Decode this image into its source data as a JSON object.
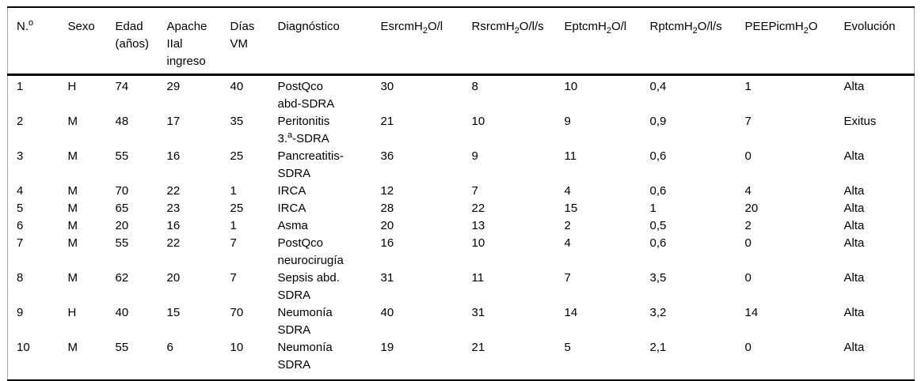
{
  "table": {
    "headers": [
      "N.^o^",
      "Sexo",
      "Edad\n(años)",
      "Apache\nIIal\ningreso",
      "Días\nVM",
      "Diagnóstico",
      "EsrcmH~2~O/l",
      "RsrcmH~2~O/l/s",
      "EptcmH~2~O/l",
      "RptcmH~2~O/l/s",
      "PEEPicmH~2~O",
      "Evolución"
    ],
    "rows": [
      [
        "1",
        "H",
        "74",
        "29",
        "40",
        "PostQco\nabd-SDRA",
        "30",
        "8",
        "10",
        "0,4",
        "1",
        "Alta"
      ],
      [
        "2",
        "M",
        "48",
        "17",
        "35",
        "Peritonitis\n3.^a^-SDRA",
        "21",
        "10",
        "9",
        "0,9",
        "7",
        "Exitus"
      ],
      [
        "3",
        "M",
        "55",
        "16",
        "25",
        "Pancreatitis-\nSDRA",
        "36",
        "9",
        "11",
        "0,6",
        "0",
        "Alta"
      ],
      [
        "4",
        "M",
        "70",
        "22",
        "1",
        "IRCA",
        "12",
        "7",
        "4",
        "0,6",
        "4",
        "Alta"
      ],
      [
        "5",
        "M",
        "65",
        "23",
        "25",
        "IRCA",
        "28",
        "22",
        "15",
        "1",
        "20",
        "Alta"
      ],
      [
        "6",
        "M",
        "20",
        "16",
        "1",
        "Asma",
        "20",
        "13",
        "2",
        "0,5",
        "2",
        "Alta"
      ],
      [
        "7",
        "M",
        "55",
        "22",
        "7",
        "PostQco\nneurocirugía",
        "16",
        "10",
        "4",
        "0,6",
        "0",
        "Alta"
      ],
      [
        "8",
        "M",
        "62",
        "20",
        "7",
        "Sepsis abd.\nSDRA",
        "31",
        "11",
        "7",
        "3,5",
        "0",
        "Alta"
      ],
      [
        "9",
        "H",
        "40",
        "15",
        "70",
        "Neumonía\nSDRA",
        "40",
        "31",
        "14",
        "3,2",
        "14",
        "Alta"
      ],
      [
        "10",
        "M",
        "55",
        "6",
        "10",
        "Neumonía\nSDRA",
        "19",
        "21",
        "5",
        "2,1",
        "0",
        "Alta"
      ]
    ]
  }
}
